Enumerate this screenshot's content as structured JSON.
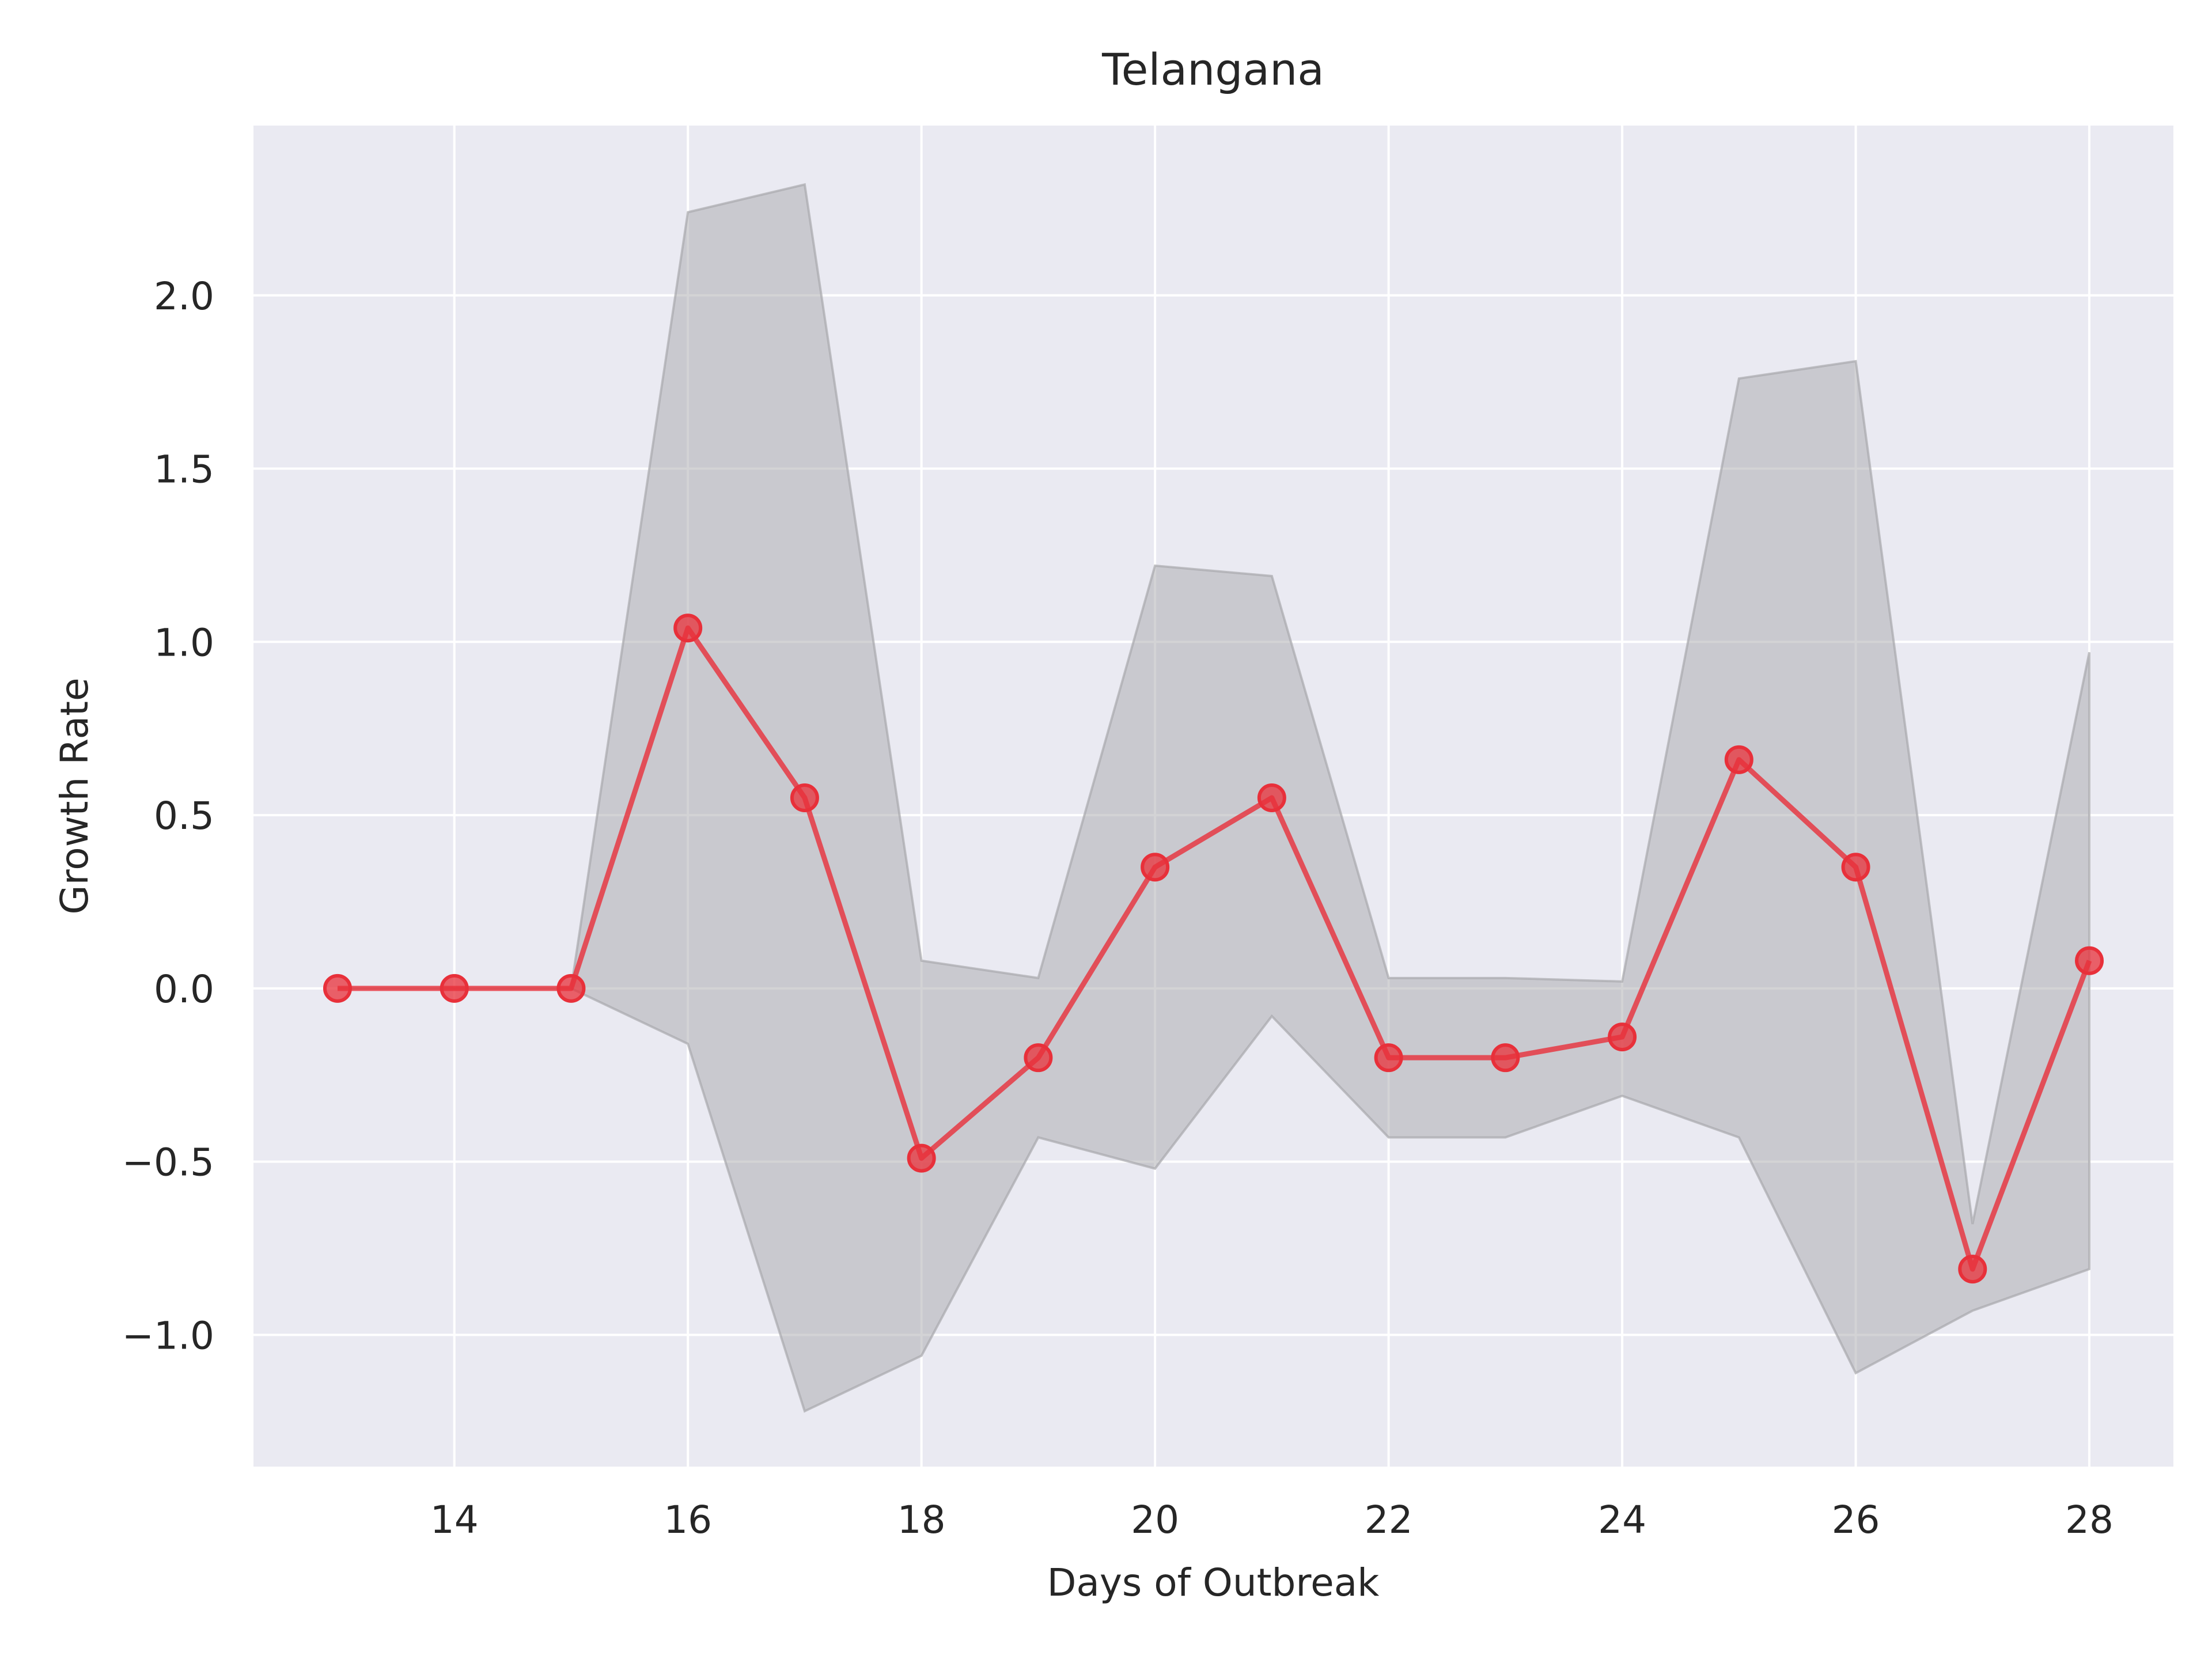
{
  "chart_data": {
    "type": "line",
    "title": "Telangana",
    "xlabel": "Days of Outbreak",
    "ylabel": "Growth Rate",
    "xlim": [
      12.28,
      28.72
    ],
    "ylim": [
      -1.38,
      2.49
    ],
    "xticks": [
      14,
      16,
      18,
      20,
      22,
      24,
      26,
      28
    ],
    "yticks": [
      -1.0,
      -0.5,
      0.0,
      0.5,
      1.0,
      1.5,
      2.0
    ],
    "ytick_labels": [
      "−1.0",
      "−0.5",
      "0.0",
      "0.5",
      "1.0",
      "1.5",
      "2.0"
    ],
    "grid": true,
    "legend": false,
    "colors": {
      "line": "#e8303a",
      "band": "#a8a8ac",
      "background": "#eaeaf2",
      "grid": "#ffffff"
    },
    "series": [
      {
        "x": [
          13,
          14,
          15,
          16,
          17,
          18,
          19,
          20,
          21,
          22,
          23,
          24,
          25,
          26,
          27,
          28
        ],
        "values": [
          0.0,
          0.0,
          0.0,
          1.04,
          0.55,
          -0.49,
          -0.2,
          0.35,
          0.55,
          -0.2,
          -0.2,
          -0.14,
          0.66,
          0.35,
          -0.81,
          0.08
        ],
        "band_upper": [
          0.0,
          0.0,
          0.0,
          2.24,
          2.32,
          0.08,
          0.03,
          1.22,
          1.19,
          0.03,
          0.03,
          0.02,
          1.76,
          1.81,
          -0.68,
          0.97
        ],
        "band_lower": [
          0.0,
          0.0,
          0.0,
          -0.16,
          -1.22,
          -1.06,
          -0.43,
          -0.52,
          -0.08,
          -0.43,
          -0.43,
          -0.31,
          -0.43,
          -1.11,
          -0.93,
          -0.81
        ]
      }
    ]
  }
}
